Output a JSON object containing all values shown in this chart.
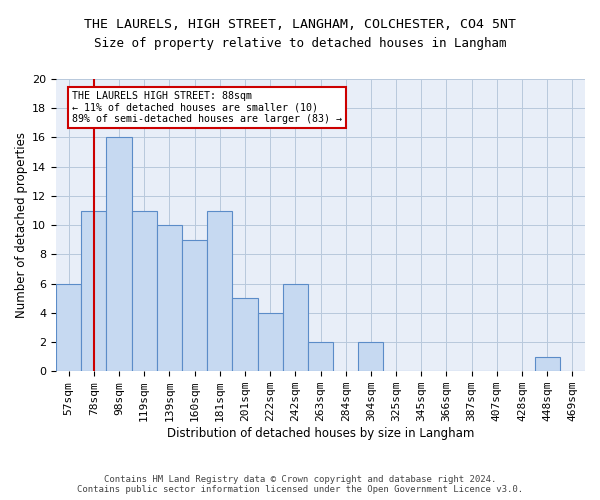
{
  "title": "THE LAURELS, HIGH STREET, LANGHAM, COLCHESTER, CO4 5NT",
  "subtitle": "Size of property relative to detached houses in Langham",
  "xlabel": "Distribution of detached houses by size in Langham",
  "ylabel": "Number of detached properties",
  "bar_labels": [
    "57sqm",
    "78sqm",
    "98sqm",
    "119sqm",
    "139sqm",
    "160sqm",
    "181sqm",
    "201sqm",
    "222sqm",
    "242sqm",
    "263sqm",
    "284sqm",
    "304sqm",
    "325sqm",
    "345sqm",
    "366sqm",
    "387sqm",
    "407sqm",
    "428sqm",
    "448sqm",
    "469sqm"
  ],
  "bar_values": [
    6,
    11,
    16,
    11,
    10,
    9,
    11,
    5,
    4,
    6,
    2,
    0,
    2,
    0,
    0,
    0,
    0,
    0,
    0,
    1,
    0
  ],
  "bar_color": "#c6d9f1",
  "bar_edge_color": "#5b8cc8",
  "grid_color": "#b8c8dc",
  "background_color": "#e8eef8",
  "vline_color": "#cc0000",
  "annotation_text": "THE LAURELS HIGH STREET: 88sqm\n← 11% of detached houses are smaller (10)\n89% of semi-detached houses are larger (83) →",
  "annotation_box_color": "#cc0000",
  "ylim": [
    0,
    20
  ],
  "yticks": [
    0,
    2,
    4,
    6,
    8,
    10,
    12,
    14,
    16,
    18,
    20
  ],
  "footer_line1": "Contains HM Land Registry data © Crown copyright and database right 2024.",
  "footer_line2": "Contains public sector information licensed under the Open Government Licence v3.0.",
  "title_fontsize": 9.5,
  "subtitle_fontsize": 9,
  "axis_label_fontsize": 8.5,
  "tick_fontsize": 8,
  "footer_fontsize": 6.5
}
